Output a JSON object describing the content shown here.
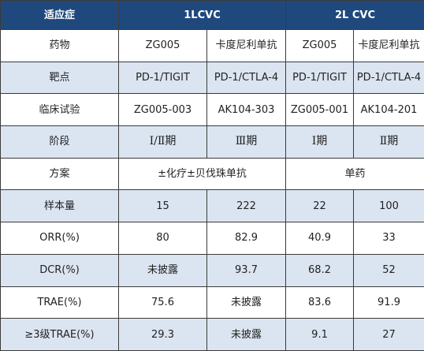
{
  "header": {
    "indication": "适应症",
    "group1": "1LCVC",
    "group2": "2L CVC"
  },
  "rows": [
    {
      "label": "药物",
      "cells": [
        "ZG005",
        "卡度尼利单抗",
        "ZG005",
        "卡度尼利单抗"
      ]
    },
    {
      "label": "靶点",
      "cells": [
        "PD-1/TIGIT",
        "PD-1/CTLA-4",
        "PD-1/TIGIT",
        "PD-1/CTLA-4"
      ]
    },
    {
      "label": "临床试验",
      "cells": [
        "ZG005-003",
        "AK104-303",
        "ZG005-001",
        "AK104-201"
      ]
    },
    {
      "label": "阶段",
      "cells": [
        "Ⅰ/Ⅱ期",
        "Ⅲ期",
        "Ⅰ期",
        "Ⅱ期"
      ]
    },
    {
      "label": "方案",
      "merged": [
        "±化疗±贝伐珠单抗",
        "单药"
      ]
    },
    {
      "label": "样本量",
      "cells": [
        "15",
        "222",
        "22",
        "100"
      ]
    },
    {
      "label": "ORR(%)",
      "cells": [
        "80",
        "82.9",
        "40.9",
        "33"
      ]
    },
    {
      "label": "DCR(%)",
      "cells": [
        "未披露",
        "93.7",
        "68.2",
        "52"
      ]
    },
    {
      "label": "TRAE(%)",
      "cells": [
        "75.6",
        "未披露",
        "83.6",
        "91.9"
      ]
    },
    {
      "label": "≥3级TRAE(%)",
      "cells": [
        "29.3",
        "未披露",
        "9.1",
        "27"
      ]
    }
  ]
}
